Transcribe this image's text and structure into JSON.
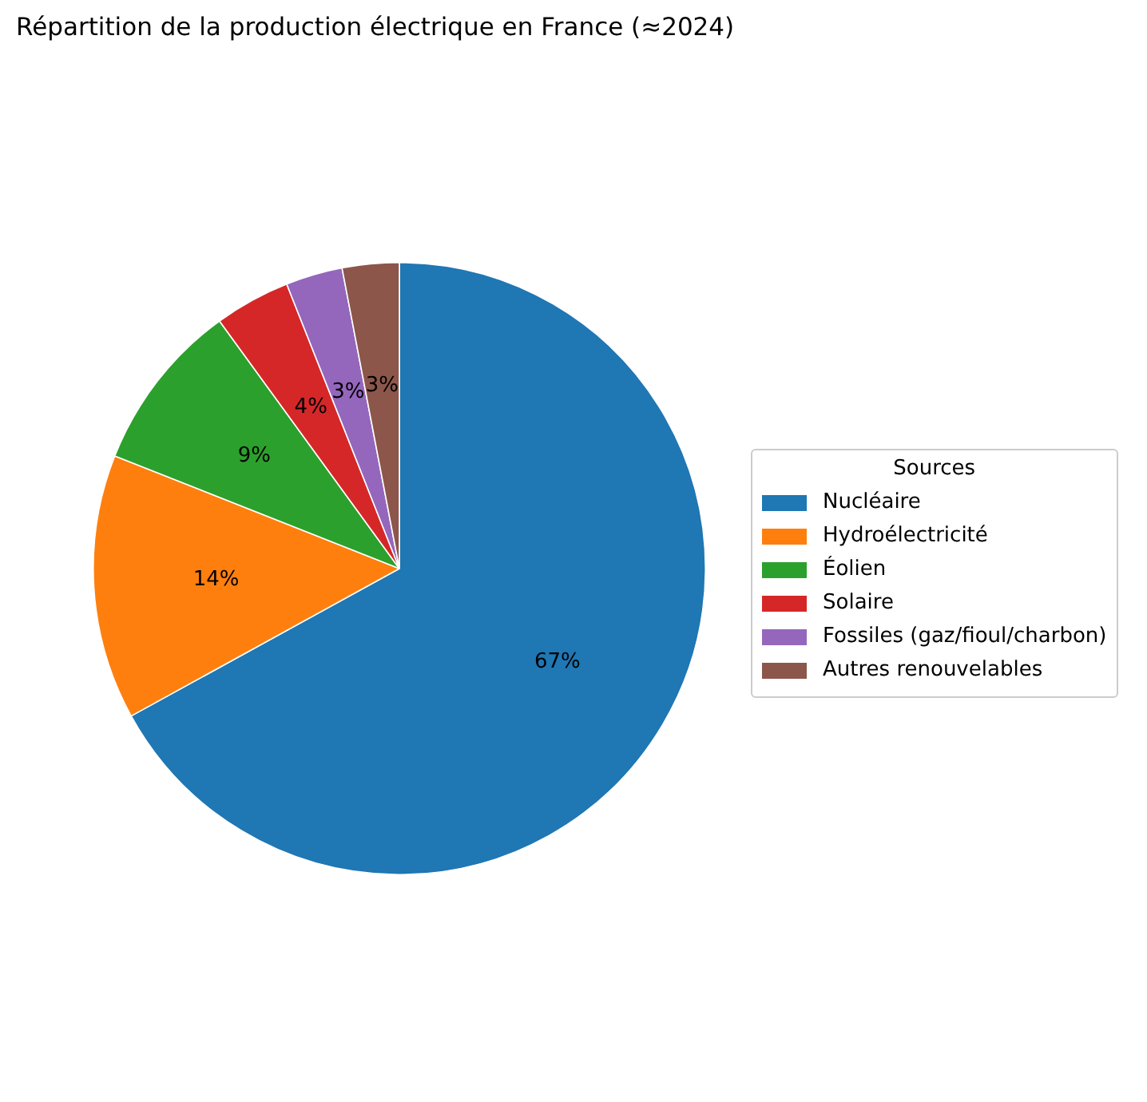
{
  "chart_data": {
    "type": "pie",
    "title": "Répartition de la production électrique en France (≈2024)",
    "legend_title": "Sources",
    "legend": "right",
    "categories": [
      "Nucléaire",
      "Hydroélectricité",
      "Éolien",
      "Solaire",
      "Fossiles (gaz/fioul/charbon)",
      "Autres renouvelables"
    ],
    "values": [
      67,
      14,
      9,
      4,
      3,
      3
    ],
    "value_labels": [
      "67%",
      "14%",
      "9%",
      "4%",
      "3%",
      "3%"
    ],
    "colors": [
      "#1f77b4",
      "#ff7f0e",
      "#2ca02c",
      "#d62728",
      "#9467bd",
      "#8c564b"
    ]
  }
}
